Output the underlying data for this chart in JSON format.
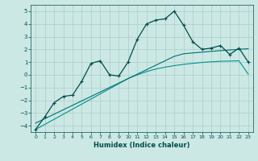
{
  "xlabel": "Humidex (Indice chaleur)",
  "xlim": [
    -0.5,
    23.5
  ],
  "ylim": [
    -4.5,
    5.5
  ],
  "yticks": [
    -4,
    -3,
    -2,
    -1,
    0,
    1,
    2,
    3,
    4,
    5
  ],
  "xticks": [
    0,
    1,
    2,
    3,
    4,
    5,
    6,
    7,
    8,
    9,
    10,
    11,
    12,
    13,
    14,
    15,
    16,
    17,
    18,
    19,
    20,
    21,
    22,
    23
  ],
  "bg_color": "#cce8e4",
  "grid_color": "#aaccca",
  "line_color_main": "#004d4d",
  "line_color_reg1": "#007070",
  "line_color_reg2": "#009090",
  "x": [
    0,
    1,
    2,
    3,
    4,
    5,
    6,
    7,
    8,
    9,
    10,
    11,
    12,
    13,
    14,
    15,
    16,
    17,
    18,
    19,
    20,
    21,
    22,
    23
  ],
  "y_main": [
    -4.3,
    -3.3,
    -2.2,
    -1.7,
    -1.6,
    -0.5,
    0.9,
    1.1,
    0.0,
    -0.1,
    1.0,
    2.8,
    4.0,
    4.3,
    4.4,
    5.0,
    3.9,
    2.6,
    2.0,
    2.1,
    2.3,
    1.6,
    2.1,
    1.0
  ],
  "y_reg1": [
    -3.8,
    -3.45,
    -3.1,
    -2.75,
    -2.4,
    -2.05,
    -1.7,
    -1.35,
    -1.0,
    -0.65,
    -0.3,
    0.05,
    0.4,
    0.75,
    1.1,
    1.45,
    1.65,
    1.72,
    1.78,
    1.84,
    1.9,
    1.95,
    2.0,
    2.05
  ],
  "y_reg2": [
    -4.3,
    -3.9,
    -3.5,
    -3.1,
    -2.7,
    -2.3,
    -1.9,
    -1.5,
    -1.1,
    -0.7,
    -0.3,
    0.0,
    0.25,
    0.45,
    0.6,
    0.72,
    0.82,
    0.9,
    0.97,
    1.02,
    1.06,
    1.08,
    1.1,
    0.05
  ]
}
